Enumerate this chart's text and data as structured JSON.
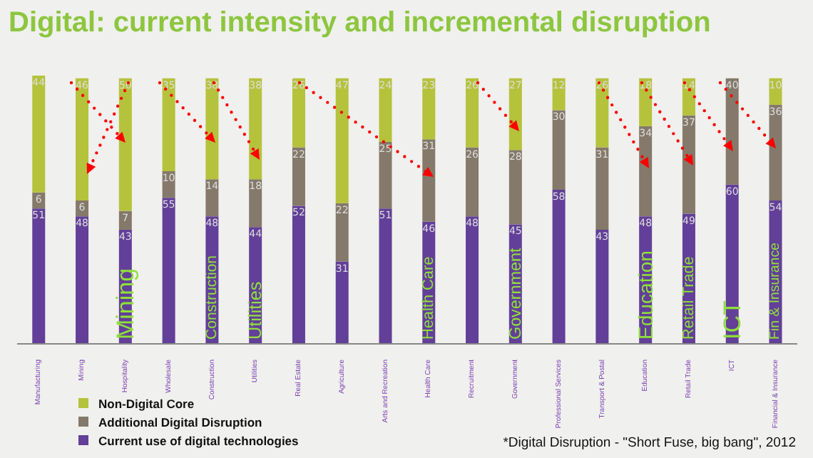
{
  "chart_data": {
    "type": "bar",
    "title": "Digital: current intensity and incremental disruption",
    "stacked": true,
    "data_labels": true,
    "legend": "bottom left",
    "tick_labels": "x",
    "ylim": [
      0,
      101
    ],
    "categories": [
      "Manufacturing",
      "Mining",
      "Hospitality",
      "Wholesale",
      "Construction",
      "Utilities",
      "Real Estate",
      "Agriculture",
      "Arts and Recreation",
      "Health Care",
      "Recruitment",
      "Government",
      "Professional Services",
      "Transport & Postal",
      "Education",
      "Retail Trade",
      "ICT",
      "Financial & Insurance"
    ],
    "series": [
      {
        "name": "Current use of digital technologies",
        "color": "#623f98",
        "values": [
          51,
          48,
          43,
          55,
          48,
          44,
          52,
          31,
          51,
          46,
          48,
          45,
          58,
          43,
          48,
          49,
          60,
          54
        ]
      },
      {
        "name": "Additional Digital Disruption",
        "color": "#84796a",
        "values": [
          6,
          6,
          7,
          10,
          14,
          18,
          22,
          22,
          25,
          31,
          26,
          28,
          30,
          31,
          34,
          37,
          40,
          36
        ]
      },
      {
        "name": "Non-Digital Core",
        "color": "#b5c23c",
        "values": [
          44,
          46,
          50,
          35,
          38,
          38,
          26,
          47,
          24,
          23,
          26,
          27,
          12,
          26,
          18,
          14,
          null,
          10
        ]
      }
    ],
    "annotations": [
      "Mining",
      "Construction",
      "Utilities",
      "Health Care",
      "Government",
      "Education",
      "Retail Trade",
      "ICT",
      "Fin & Insurance",
      "*Digital Disruption - \"Short Fuse, big bang\", 2012"
    ]
  }
}
